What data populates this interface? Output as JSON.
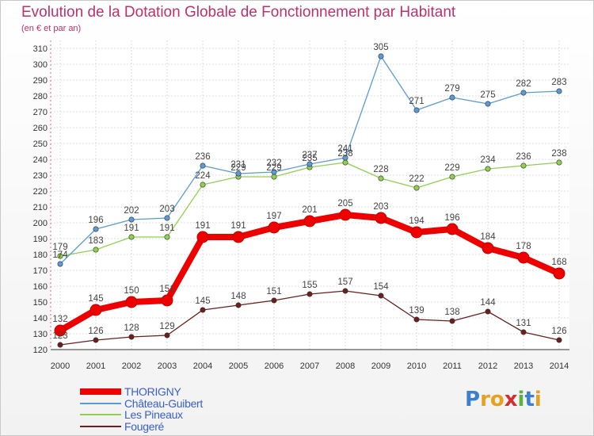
{
  "title": "Evolution de la Dotation Globale de Fonctionnement par Habitant",
  "subtitle": "(en € et par an)",
  "logo": {
    "letters": [
      "P",
      "r",
      "o",
      "x",
      "i",
      "t",
      "i"
    ],
    "colors": [
      "#3a7fd0",
      "#e8a020",
      "#e8a020",
      "#d03030",
      "#60b040",
      "#3a7fd0",
      "#e8a020"
    ]
  },
  "chart_data": {
    "type": "line",
    "x": [
      "2000",
      "2001",
      "2002",
      "2003",
      "2004",
      "2005",
      "2006",
      "2007",
      "2008",
      "2009",
      "2010",
      "2011",
      "2012",
      "2013",
      "2014"
    ],
    "ylim": [
      120,
      310
    ],
    "yticks": [
      120,
      130,
      140,
      150,
      160,
      170,
      180,
      190,
      200,
      210,
      220,
      230,
      240,
      250,
      260,
      270,
      280,
      290,
      300,
      310
    ],
    "grid": true,
    "legend_position": "bottom-left",
    "series": [
      {
        "name": "THORIGNY",
        "color": "#ee0000",
        "values": [
          132,
          145,
          150,
          151,
          191,
          191,
          197,
          201,
          205,
          203,
          194,
          196,
          184,
          178,
          168
        ]
      },
      {
        "name": "Château-Guibert",
        "color": "#5b9bd5",
        "values": [
          174,
          196,
          202,
          203,
          236,
          231,
          232,
          237,
          241,
          305,
          271,
          279,
          275,
          282,
          283
        ]
      },
      {
        "name": "Les Pineaux",
        "color": "#8fd14f",
        "values": [
          179,
          183,
          191,
          191,
          224,
          229,
          229,
          235,
          238,
          228,
          222,
          229,
          234,
          236,
          238
        ]
      },
      {
        "name": "Fougeré",
        "color": "#6b1f1f",
        "values": [
          123,
          126,
          128,
          129,
          145,
          148,
          151,
          155,
          157,
          154,
          139,
          138,
          144,
          131,
          126
        ]
      }
    ]
  }
}
